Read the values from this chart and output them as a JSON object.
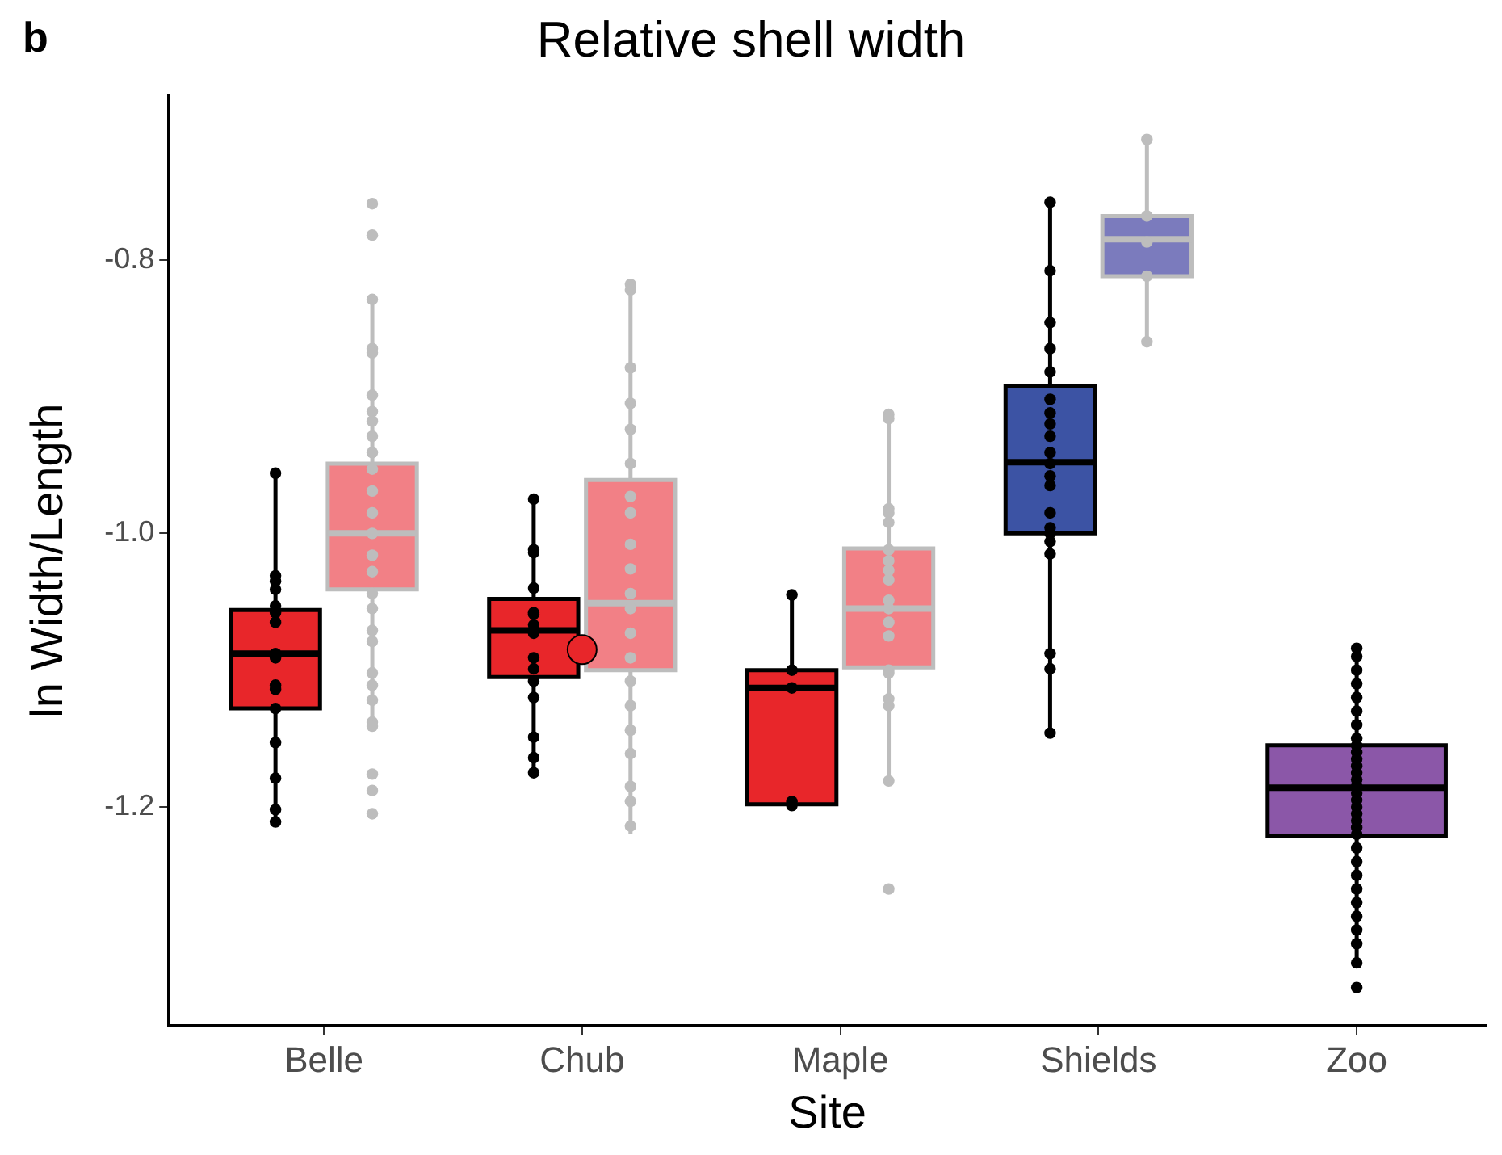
{
  "chart_data": {
    "type": "box",
    "title": "Relative shell width",
    "xlabel": "Site",
    "ylabel": "ln Width/Length",
    "annotations": [
      "b"
    ],
    "categories": [
      "Belle",
      "Chub",
      "Maple",
      "Shields",
      "Zoo"
    ],
    "ylim": [
      -1.36,
      -0.68
    ],
    "yticks": [
      {
        "value": -0.8,
        "label": "-0.8"
      },
      {
        "value": -1.0,
        "label": "-1.0"
      },
      {
        "value": -1.2,
        "label": "-1.2"
      }
    ],
    "grid": false,
    "series": [
      {
        "colors": [
          "#e8262a",
          "#e8262a",
          "#e8262a",
          "#3c53a4",
          "#8b57a8"
        ],
        "boxes": [
          {
            "low": -1.212,
            "q1": -1.128,
            "median": -1.088,
            "q3": -1.056,
            "high": -0.956
          },
          {
            "low": -1.174,
            "q1": -1.105,
            "median": -1.071,
            "q3": -1.048,
            "high": -0.976
          },
          {
            "low": -1.198,
            "q1": -1.198,
            "median": -1.113,
            "q3": -1.1,
            "high": -1.046
          },
          {
            "low": -1.146,
            "q1": -1.0,
            "median": -0.948,
            "q3": -0.892,
            "high": -0.758
          },
          {
            "low": -1.314,
            "q1": -1.221,
            "median": -1.186,
            "q3": -1.155,
            "high": -1.084
          }
        ]
      },
      {
        "colors": [
          "#f28086",
          "#f28086",
          "#f28086",
          "#7b7bbd",
          null
        ],
        "boxes": [
          {
            "low": -1.141,
            "q1": -1.041,
            "median": -1.0,
            "q3": -0.949,
            "high": -0.831
          },
          {
            "low": -1.22,
            "q1": -1.1,
            "median": -1.051,
            "q3": -0.961,
            "high": -0.818
          },
          {
            "low": -1.181,
            "q1": -1.098,
            "median": -1.055,
            "q3": -1.011,
            "high": -0.913
          },
          {
            "low": -0.86,
            "q1": -0.812,
            "median": -0.785,
            "q3": -0.768,
            "high": -0.712
          },
          null
        ]
      },
      {
        "type": "scatter",
        "color": "#000000",
        "x": [
          "Belle",
          "Belle",
          "Belle",
          "Belle",
          "Belle",
          "Belle",
          "Belle",
          "Belle",
          "Belle",
          "Belle",
          "Belle",
          "Belle",
          "Belle",
          "Belle",
          "Belle",
          "Belle",
          "Belle",
          "Chub",
          "Chub",
          "Chub",
          "Chub",
          "Chub",
          "Chub",
          "Chub",
          "Chub",
          "Chub",
          "Chub",
          "Chub",
          "Chub",
          "Chub",
          "Chub",
          "Chub",
          "Maple",
          "Maple",
          "Maple",
          "Maple",
          "Maple",
          "Shields",
          "Shields",
          "Shields",
          "Shields",
          "Shields",
          "Shields",
          "Shields",
          "Shields",
          "Shields",
          "Shields",
          "Shields",
          "Shields",
          "Shields",
          "Shields",
          "Shields",
          "Shields",
          "Shields",
          "Shields",
          "Shields",
          "Shields",
          "Shields",
          "Zoo",
          "Zoo",
          "Zoo",
          "Zoo",
          "Zoo",
          "Zoo",
          "Zoo",
          "Zoo",
          "Zoo",
          "Zoo",
          "Zoo",
          "Zoo",
          "Zoo",
          "Zoo",
          "Zoo",
          "Zoo",
          "Zoo",
          "Zoo",
          "Zoo",
          "Zoo",
          "Zoo",
          "Zoo",
          "Zoo",
          "Zoo",
          "Zoo",
          "Zoo",
          "Zoo",
          "Zoo",
          "Zoo",
          "Zoo",
          "Zoo",
          "Zoo"
        ],
        "values": [
          -0.956,
          -1.031,
          -1.035,
          -1.041,
          -1.053,
          -1.058,
          -1.065,
          -1.088,
          -1.088,
          -1.091,
          -1.111,
          -1.114,
          -1.128,
          -1.153,
          -1.179,
          -1.202,
          -1.211,
          -0.975,
          -1.012,
          -1.014,
          -1.04,
          -1.058,
          -1.059,
          -1.067,
          -1.073,
          -1.091,
          -1.099,
          -1.108,
          -1.12,
          -1.149,
          -1.164,
          -1.175,
          -1.045,
          -1.1,
          -1.113,
          -1.196,
          -1.199,
          -0.758,
          -0.808,
          -0.846,
          -0.865,
          -0.882,
          -0.902,
          -0.912,
          -0.92,
          -0.929,
          -0.941,
          -0.949,
          -0.958,
          -0.965,
          -0.985,
          -0.996,
          -1.0,
          -1.006,
          -1.015,
          -1.088,
          -1.099,
          -1.146,
          -1.084,
          -1.09,
          -1.1,
          -1.11,
          -1.12,
          -1.13,
          -1.14,
          -1.15,
          -1.155,
          -1.16,
          -1.165,
          -1.17,
          -1.175,
          -1.18,
          -1.185,
          -1.19,
          -1.195,
          -1.2,
          -1.205,
          -1.21,
          -1.215,
          -1.22,
          -1.23,
          -1.24,
          -1.25,
          -1.26,
          -1.27,
          -1.28,
          -1.29,
          -1.3,
          -1.314,
          -1.332
        ]
      },
      {
        "type": "scatter",
        "color": "#bdbdbd",
        "x": [
          "Belle",
          "Belle",
          "Belle",
          "Belle",
          "Belle",
          "Belle",
          "Belle",
          "Belle",
          "Belle",
          "Belle",
          "Belle",
          "Belle",
          "Belle",
          "Belle",
          "Belle",
          "Belle",
          "Belle",
          "Belle",
          "Belle",
          "Belle",
          "Belle",
          "Belle",
          "Belle",
          "Belle",
          "Belle",
          "Belle",
          "Belle",
          "Belle",
          "Chub",
          "Chub",
          "Chub",
          "Chub",
          "Chub",
          "Chub",
          "Chub",
          "Chub",
          "Chub",
          "Chub",
          "Chub",
          "Chub",
          "Chub",
          "Chub",
          "Chub",
          "Chub",
          "Chub",
          "Chub",
          "Chub",
          "Chub",
          "Chub",
          "Maple",
          "Maple",
          "Maple",
          "Maple",
          "Maple",
          "Maple",
          "Maple",
          "Maple",
          "Maple",
          "Maple",
          "Maple",
          "Maple",
          "Maple",
          "Maple",
          "Maple",
          "Maple",
          "Maple",
          "Maple",
          "Maple",
          "Shields",
          "Shields",
          "Shields",
          "Shields",
          "Shields"
        ],
        "values": [
          -0.759,
          -0.782,
          -0.829,
          -0.865,
          -0.868,
          -0.899,
          -0.911,
          -0.918,
          -0.929,
          -0.941,
          -0.953,
          -0.969,
          -0.985,
          -1.0,
          -1.016,
          -1.028,
          -1.044,
          -1.055,
          -1.071,
          -1.079,
          -1.102,
          -1.111,
          -1.122,
          -1.138,
          -1.141,
          -1.176,
          -1.188,
          -1.205,
          -0.818,
          -0.822,
          -0.879,
          -0.905,
          -0.924,
          -0.949,
          -0.973,
          -0.985,
          -1.008,
          -1.026,
          -1.044,
          -1.055,
          -1.073,
          -1.091,
          -1.108,
          -1.126,
          -1.144,
          -1.161,
          -1.185,
          -1.196,
          -1.214,
          -0.913,
          -0.916,
          -0.982,
          -0.985,
          -0.992,
          -1.012,
          -1.02,
          -1.027,
          -1.034,
          -1.049,
          -1.055,
          -1.065,
          -1.075,
          -1.1,
          -1.102,
          -1.121,
          -1.126,
          -1.181,
          -1.26,
          -0.712,
          -0.768,
          -0.787,
          -0.812,
          -0.86
        ]
      },
      {
        "type": "scatter",
        "color": "#e8262a",
        "x": [
          "Chub"
        ],
        "values": [
          -1.085
        ]
      }
    ]
  }
}
